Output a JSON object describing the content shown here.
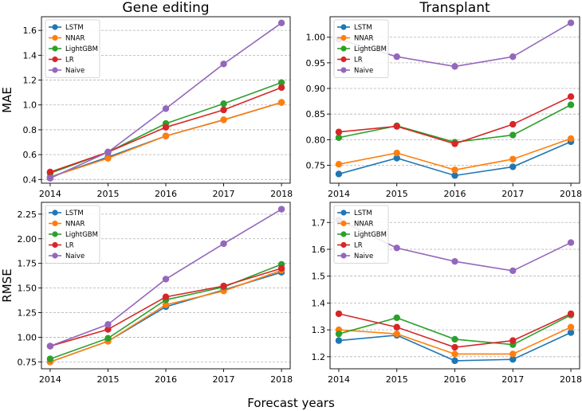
{
  "figure": {
    "xlabel": "Forecast years"
  },
  "colors": {
    "LSTM": "#1f77b4",
    "NNAR": "#ff7f0e",
    "LightGBM": "#2ca02c",
    "LR": "#d62728",
    "Naive": "#9467bd"
  },
  "chart_data": [
    {
      "type": "line",
      "panel": "top-left",
      "title": "Gene editing",
      "ylabel": "MAE",
      "xlabel": "",
      "x": [
        2014,
        2015,
        2016,
        2017,
        2018
      ],
      "ylim": [
        0.37,
        1.71
      ],
      "yticks": [
        0.4,
        0.6,
        0.8,
        1.0,
        1.2,
        1.4,
        1.6
      ],
      "ytick_labels": [
        "0.4",
        "0.6",
        "0.8",
        "1.0",
        "1.2",
        "1.4",
        "1.6"
      ],
      "grid": "horizontal-dashed",
      "legend": "top-left",
      "series": [
        {
          "name": "LSTM",
          "values": [
            0.42,
            0.58,
            0.75,
            0.88,
            1.02
          ]
        },
        {
          "name": "NNAR",
          "values": [
            0.42,
            0.57,
            0.75,
            0.88,
            1.02
          ]
        },
        {
          "name": "LightGBM",
          "values": [
            0.45,
            0.62,
            0.85,
            1.01,
            1.18
          ]
        },
        {
          "name": "LR",
          "values": [
            0.46,
            0.62,
            0.82,
            0.96,
            1.14
          ]
        },
        {
          "name": "Naive",
          "values": [
            0.41,
            0.62,
            0.97,
            1.33,
            1.66
          ]
        }
      ]
    },
    {
      "type": "line",
      "panel": "top-right",
      "title": "Transplant",
      "ylabel": "",
      "xlabel": "",
      "x": [
        2014,
        2015,
        2016,
        2017,
        2018
      ],
      "ylim": [
        0.715,
        1.04
      ],
      "yticks": [
        0.75,
        0.8,
        0.85,
        0.9,
        0.95,
        1.0
      ],
      "ytick_labels": [
        "0.75",
        "0.80",
        "0.85",
        "0.90",
        "0.95",
        "1.00"
      ],
      "grid": "horizontal-dashed",
      "legend": "top-left",
      "series": [
        {
          "name": "LSTM",
          "values": [
            0.733,
            0.764,
            0.73,
            0.747,
            0.796
          ]
        },
        {
          "name": "NNAR",
          "values": [
            0.752,
            0.774,
            0.741,
            0.762,
            0.802
          ]
        },
        {
          "name": "LightGBM",
          "values": [
            0.804,
            0.827,
            0.795,
            0.809,
            0.868
          ]
        },
        {
          "name": "LR",
          "values": [
            0.815,
            0.826,
            0.792,
            0.83,
            0.884
          ]
        },
        {
          "name": "Naive",
          "values": [
            0.996,
            0.962,
            0.943,
            0.962,
            1.028
          ]
        }
      ]
    },
    {
      "type": "line",
      "panel": "bottom-left",
      "title": "",
      "ylabel": "RMSE",
      "xlabel": "",
      "x": [
        2014,
        2015,
        2016,
        2017,
        2018
      ],
      "ylim": [
        0.68,
        2.37
      ],
      "yticks": [
        0.75,
        1.0,
        1.25,
        1.5,
        1.75,
        2.0,
        2.25
      ],
      "ytick_labels": [
        "0.75",
        "1.00",
        "1.25",
        "1.50",
        "1.75",
        "2.00",
        "2.25"
      ],
      "grid": "horizontal-dashed",
      "legend": "top-left",
      "series": [
        {
          "name": "LSTM",
          "values": [
            0.75,
            0.96,
            1.31,
            1.48,
            1.66
          ]
        },
        {
          "name": "NNAR",
          "values": [
            0.75,
            0.96,
            1.33,
            1.47,
            1.68
          ]
        },
        {
          "name": "LightGBM",
          "values": [
            0.78,
            0.99,
            1.38,
            1.51,
            1.74
          ]
        },
        {
          "name": "LR",
          "values": [
            0.91,
            1.08,
            1.41,
            1.52,
            1.7
          ]
        },
        {
          "name": "Naive",
          "values": [
            0.91,
            1.13,
            1.59,
            1.95,
            2.3
          ]
        }
      ]
    },
    {
      "type": "line",
      "panel": "bottom-right",
      "title": "",
      "ylabel": "",
      "xlabel": "",
      "x": [
        2014,
        2015,
        2016,
        2017,
        2018
      ],
      "ylim": [
        1.155,
        1.775
      ],
      "yticks": [
        1.2,
        1.3,
        1.4,
        1.5,
        1.6,
        1.7
      ],
      "ytick_labels": [
        "1.2",
        "1.3",
        "1.4",
        "1.5",
        "1.6",
        "1.7"
      ],
      "grid": "horizontal-dashed",
      "legend": "top-left",
      "series": [
        {
          "name": "LSTM",
          "values": [
            1.26,
            1.28,
            1.185,
            1.19,
            1.29
          ]
        },
        {
          "name": "NNAR",
          "values": [
            1.3,
            1.285,
            1.21,
            1.21,
            1.31
          ]
        },
        {
          "name": "LightGBM",
          "values": [
            1.285,
            1.345,
            1.265,
            1.245,
            1.355
          ]
        },
        {
          "name": "LR",
          "values": [
            1.36,
            1.31,
            1.235,
            1.26,
            1.36
          ]
        },
        {
          "name": "Naive",
          "values": [
            1.71,
            1.605,
            1.555,
            1.52,
            1.625
          ]
        }
      ]
    }
  ]
}
